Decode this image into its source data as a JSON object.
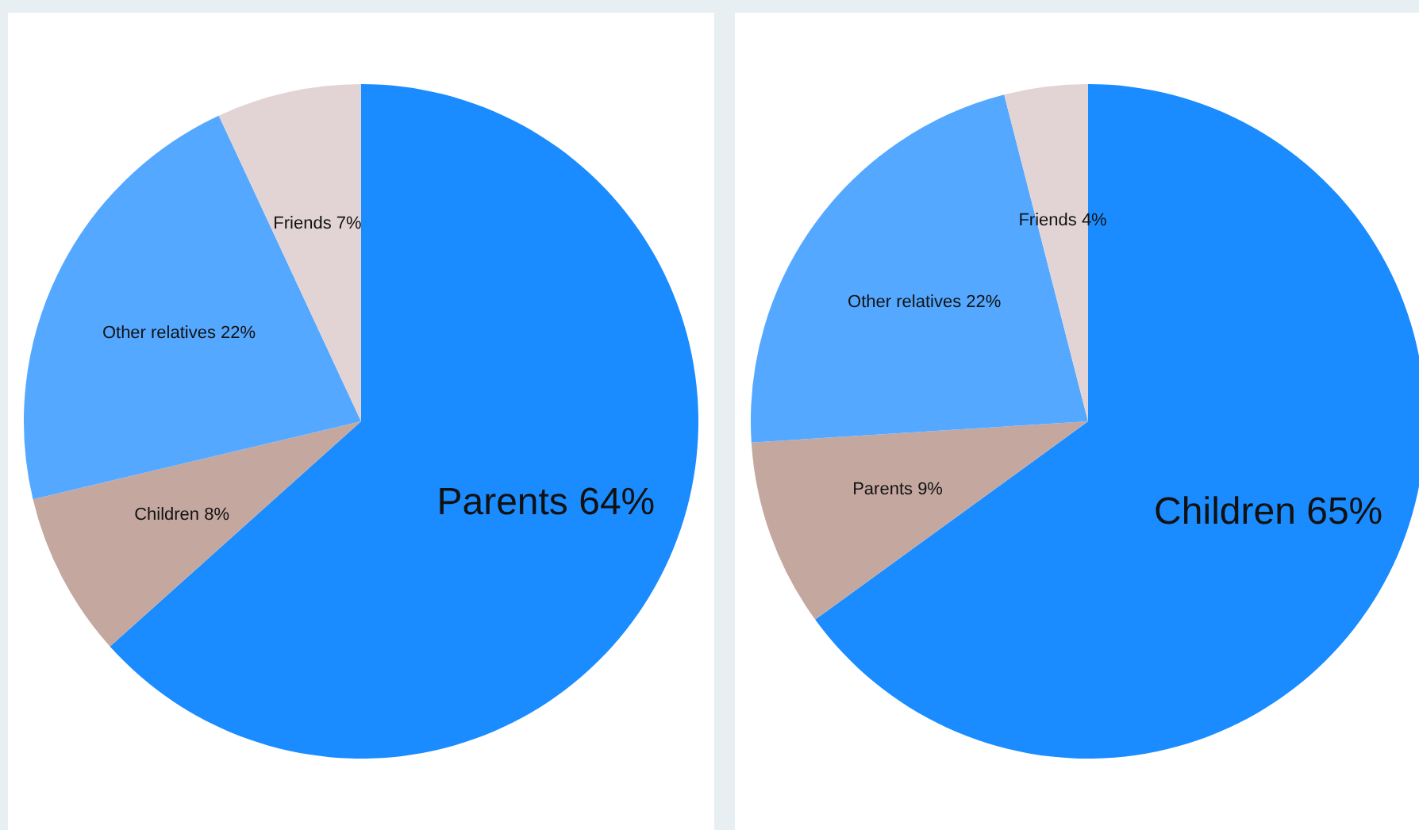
{
  "chart_data": [
    {
      "type": "pie",
      "categories": [
        "Parents",
        "Children",
        "Other relatives",
        "Friends"
      ],
      "values": [
        64,
        8,
        22,
        7
      ],
      "value_labels": [
        "64%",
        "8%",
        "22%",
        "7%"
      ],
      "colors": [
        "#1a8cff",
        "#c4a8a0",
        "#55a8ff",
        "#e2d4d4"
      ]
    },
    {
      "type": "pie",
      "categories": [
        "Children",
        "Parents",
        "Other relatives",
        "Friends"
      ],
      "values": [
        65,
        9,
        22,
        4
      ],
      "value_labels": [
        "65%",
        "9%",
        "22%",
        "4%"
      ],
      "colors": [
        "#1a8cff",
        "#c4a8a0",
        "#55a8ff",
        "#e2d4d4"
      ]
    }
  ]
}
